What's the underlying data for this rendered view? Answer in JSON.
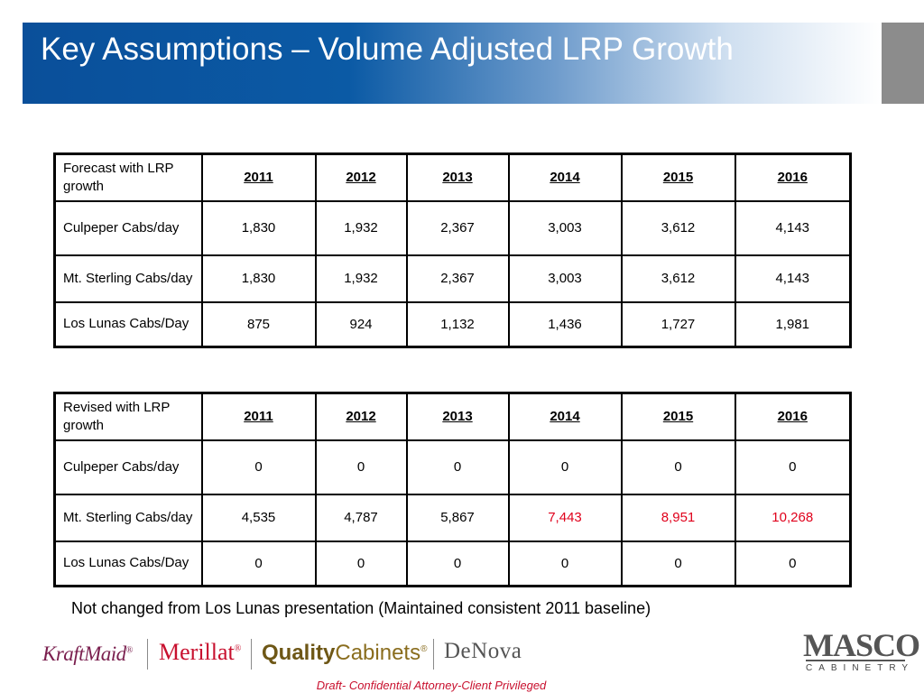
{
  "slide": {
    "title": "Key Assumptions – Volume Adjusted LRP Growth",
    "accent_color": "#0a4f9a"
  },
  "forecast_table": {
    "header_label": "Forecast with LRP growth",
    "years": [
      "2011",
      "2012",
      "2013",
      "2014",
      "2015",
      "2016"
    ],
    "rows": [
      {
        "label": "Culpeper Cabs/day",
        "values": [
          "1,830",
          "1,932",
          "2,367",
          "3,003",
          "3,612",
          "4,143"
        ]
      },
      {
        "label": "Mt. Sterling Cabs/day",
        "values": [
          "1,830",
          "1,932",
          "2,367",
          "3,003",
          "3,612",
          "4,143"
        ]
      },
      {
        "label": "Los Lunas Cabs/Day",
        "values": [
          "875",
          "924",
          "1,132",
          "1,436",
          "1,727",
          "1,981"
        ]
      }
    ]
  },
  "revised_table": {
    "header_label": "Revised with LRP growth",
    "years": [
      "2011",
      "2012",
      "2013",
      "2014",
      "2015",
      "2016"
    ],
    "rows": [
      {
        "label": "Culpeper Cabs/day",
        "values": [
          "0",
          "0",
          "0",
          "0",
          "0",
          "0"
        ]
      },
      {
        "label": "Mt. Sterling Cabs/day",
        "values": [
          "4,535",
          "4,787",
          "5,867",
          "7,443",
          "8,951",
          "10,268"
        ],
        "highlight_color": "#e0001b"
      },
      {
        "label": "Los Lunas Cabs/Day",
        "values": [
          "0",
          "0",
          "0",
          "0",
          "0",
          "0"
        ]
      }
    ]
  },
  "note": "Not changed from Los Lunas presentation (Maintained consistent 2011 baseline)",
  "brands": {
    "kraftmaid": "KraftMaid",
    "merillat": "Merillat",
    "quality_prefix": "Quality",
    "quality_suffix": "Cabinets",
    "denova": "DeNova",
    "registered_mark": "®"
  },
  "company_logo": {
    "name": "MASCO",
    "subtitle": "CABINETRY"
  },
  "footer": "Draft- Confidential  Attorney-Client Privileged"
}
